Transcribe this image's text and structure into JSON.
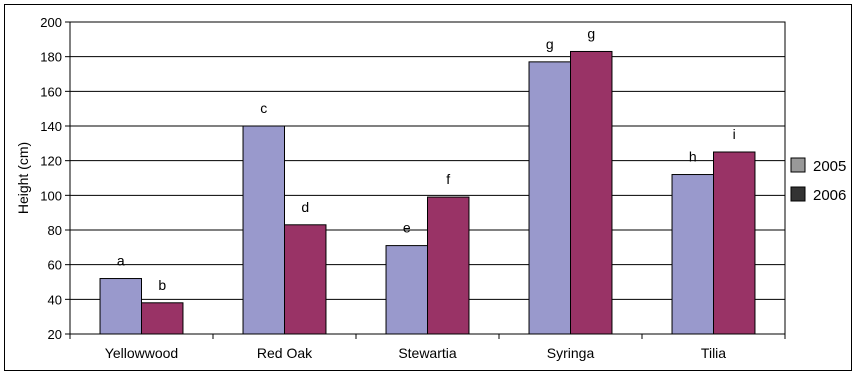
{
  "chart_data": {
    "type": "bar",
    "categories": [
      "Yellowwood",
      "Red Oak",
      "Stewartia",
      "Syringa",
      "Tilia"
    ],
    "series": [
      {
        "name": "2005",
        "values": [
          52,
          140,
          71,
          177,
          112
        ],
        "color": "#9999cc"
      },
      {
        "name": "2006",
        "values": [
          38,
          83,
          99,
          183,
          125
        ],
        "color": "#993366"
      }
    ],
    "data_labels": [
      [
        "a",
        "b"
      ],
      [
        "c",
        "d"
      ],
      [
        "e",
        "f"
      ],
      [
        "g",
        "g"
      ],
      [
        "h",
        "i"
      ]
    ],
    "title": "",
    "xlabel": "",
    "ylabel": "Height (cm)",
    "ylim": [
      20,
      200
    ],
    "yticks": [
      20,
      40,
      60,
      80,
      100,
      120,
      140,
      160,
      180,
      200
    ],
    "grid": true,
    "legend_position": "right",
    "legend_swatch_colors": [
      "#999999",
      "#333333"
    ]
  }
}
